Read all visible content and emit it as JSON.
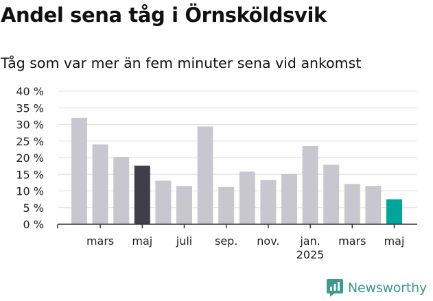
{
  "title": "Andel sena tåg i Örnsköldsvik",
  "subtitle": "Tåg som var mer än fem minuter sena vid ankomst",
  "brand": {
    "name": "Newsworthy",
    "logo_icon": "newsworthy-logo-icon",
    "color": "#3c9a8e"
  },
  "colors": {
    "default_bar": "#c8c7d0",
    "highlight_bar": "#403e4b",
    "latest_bar": "#00a59b",
    "grid": "#dddddd",
    "axis": "#333333"
  },
  "chart_data": {
    "type": "bar",
    "title": "Andel sena tåg i Örnsköldsvik",
    "subtitle": "Tåg som var mer än fem minuter sena vid ankomst",
    "xlabel": "",
    "ylabel": "",
    "ylim": [
      0,
      40
    ],
    "yticks": [
      "0 %",
      "5 %",
      "10 %",
      "15 %",
      "20 %",
      "25 %",
      "30 %",
      "35 %",
      "40 %"
    ],
    "ytick_values": [
      0,
      5,
      10,
      15,
      20,
      25,
      30,
      35,
      40
    ],
    "grid": true,
    "legend": "none",
    "values": [
      32,
      24,
      20.2,
      17.6,
      13.1,
      11.5,
      29.4,
      11.2,
      15.8,
      13.3,
      15.1,
      23.5,
      17.9,
      12.1,
      11.5,
      7.5
    ],
    "bar_styles": [
      "default",
      "default",
      "default",
      "highlight",
      "default",
      "default",
      "default",
      "default",
      "default",
      "default",
      "default",
      "default",
      "default",
      "default",
      "default",
      "latest"
    ],
    "x_ticks": [
      {
        "bar_index": 1.5,
        "label": "mars",
        "sublabel": ""
      },
      {
        "bar_index": 3.5,
        "label": "maj",
        "sublabel": ""
      },
      {
        "bar_index": 5.5,
        "label": "juli",
        "sublabel": ""
      },
      {
        "bar_index": 7.5,
        "label": "sep.",
        "sublabel": ""
      },
      {
        "bar_index": 9.5,
        "label": "nov.",
        "sublabel": ""
      },
      {
        "bar_index": 11.5,
        "label": "jan.",
        "sublabel": "2025"
      },
      {
        "bar_index": 13.5,
        "label": "mars",
        "sublabel": ""
      },
      {
        "bar_index": 15.5,
        "label": "maj",
        "sublabel": ""
      }
    ]
  }
}
